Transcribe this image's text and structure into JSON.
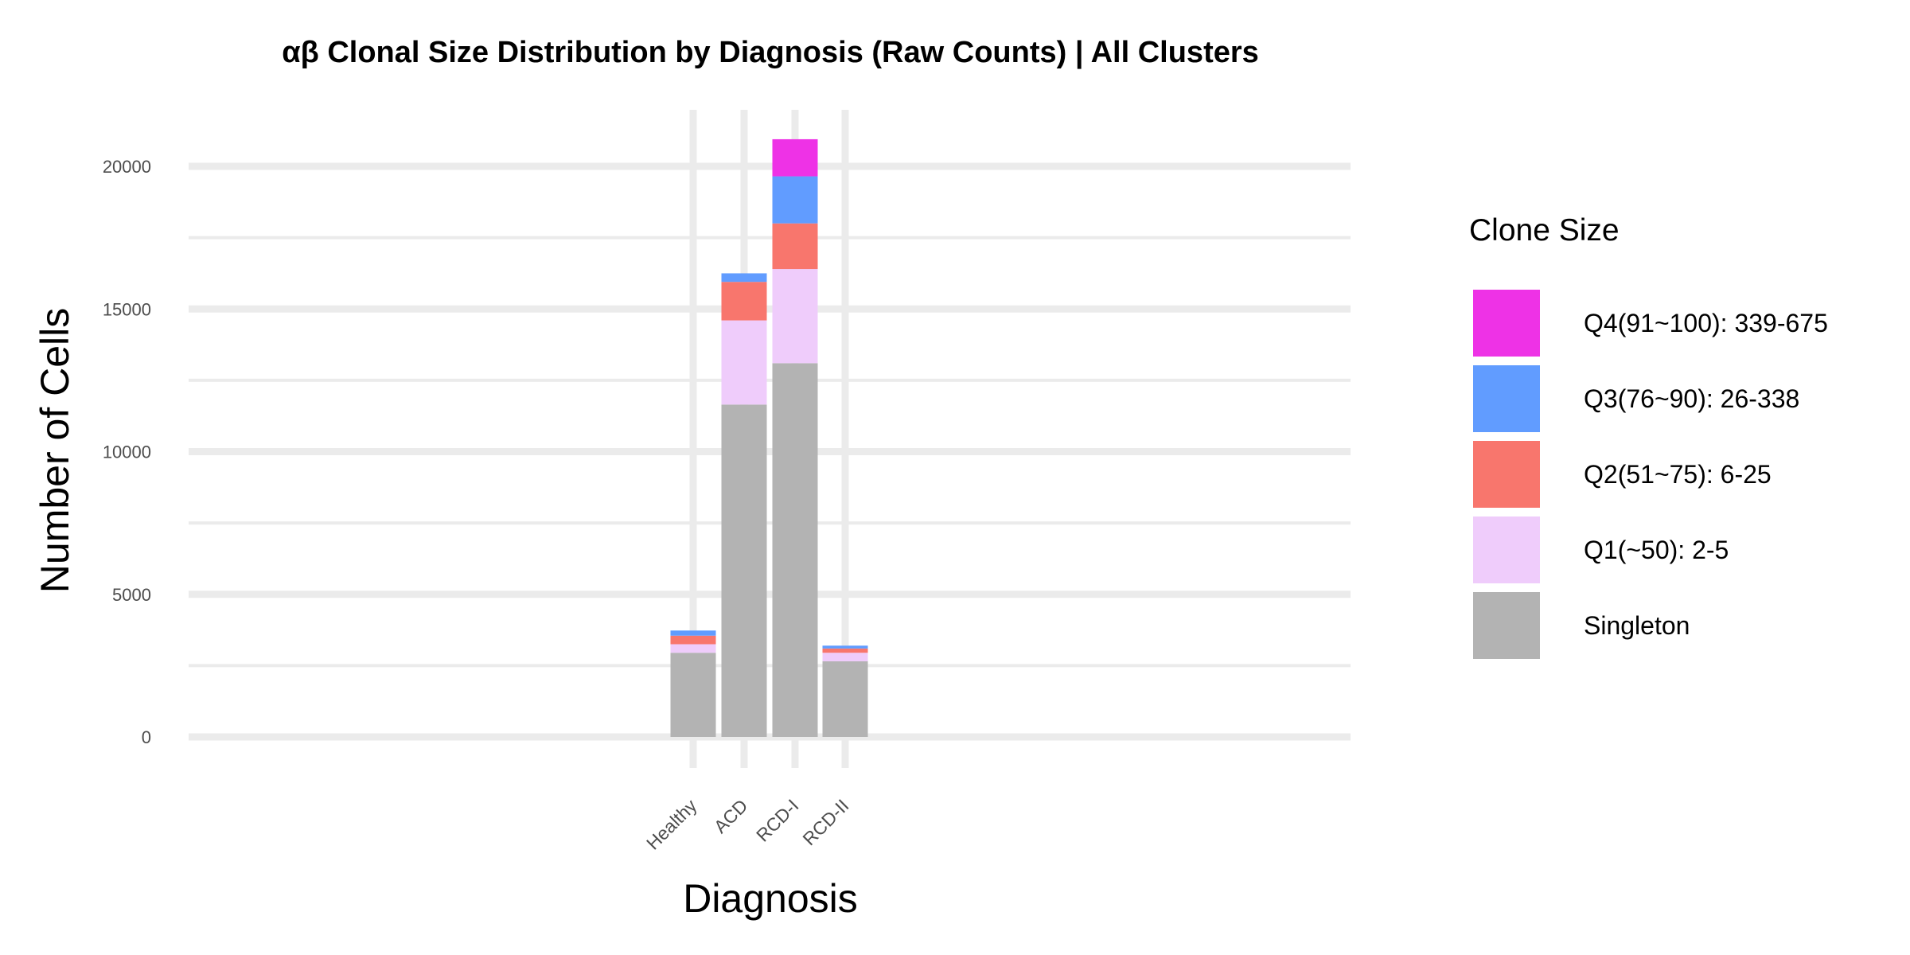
{
  "chart_data": {
    "type": "bar",
    "stacked": true,
    "title": "αβ Clonal Size Distribution by Diagnosis (Raw Counts) | All Clusters",
    "xlabel": "Diagnosis",
    "ylabel": "Number of Cells",
    "ylim": [
      0,
      22000
    ],
    "y_ticks": [
      0,
      5000,
      10000,
      15000,
      20000
    ],
    "grid": true,
    "categories": [
      "Healthy",
      "ACD",
      "RCD-I",
      "RCD-II"
    ],
    "legend": {
      "title": "Clone Size",
      "position": "right"
    },
    "series": [
      {
        "name": "Singleton",
        "color": "#B3B3B3",
        "values": [
          2950,
          11650,
          13100,
          2650
        ]
      },
      {
        "name": "Q1(~50): 2-5",
        "color": "#EFCCFB",
        "values": [
          300,
          2950,
          3300,
          300
        ]
      },
      {
        "name": "Q2(51~75): 6-25",
        "color": "#F8766D",
        "values": [
          300,
          1350,
          1600,
          150
        ]
      },
      {
        "name": "Q3(76~90): 26-338",
        "color": "#619CFF",
        "values": [
          180,
          300,
          1650,
          100
        ]
      },
      {
        "name": "Q4(91~100): 339-675",
        "color": "#EE32E6",
        "values": [
          0,
          0,
          1300,
          0
        ]
      }
    ]
  }
}
